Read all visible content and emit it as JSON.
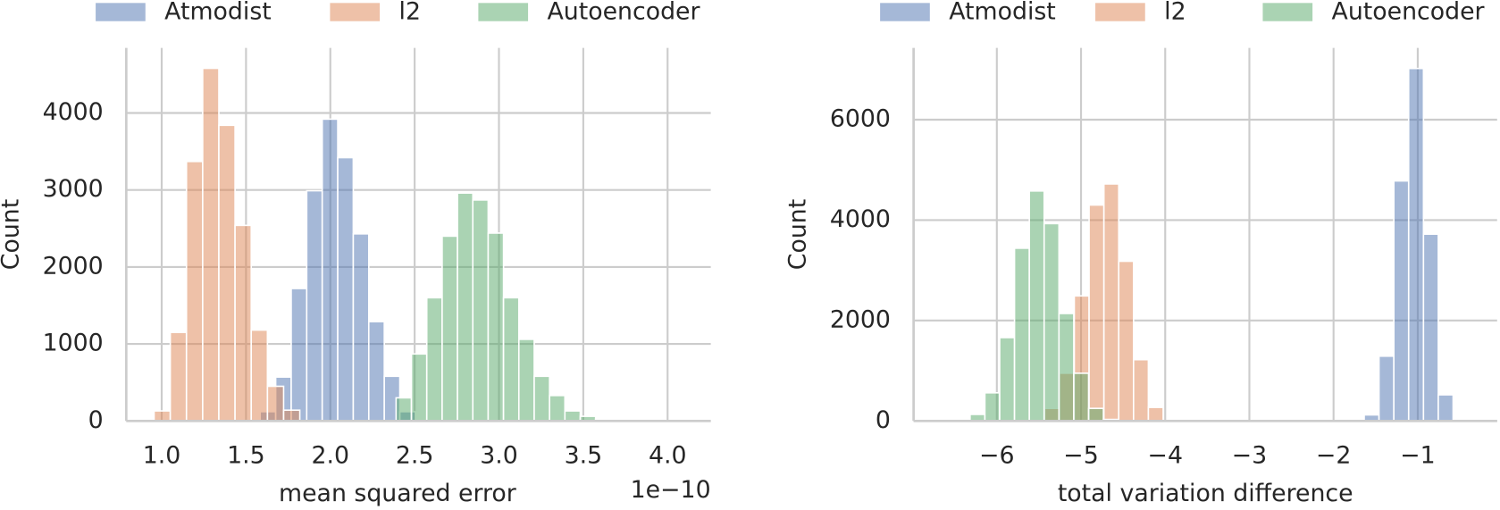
{
  "chart_data": [
    {
      "type": "histogram",
      "x_label": "mean squared error",
      "y_label": "Count",
      "x_offset_label": "1e−10",
      "xlim": [
        0.79,
        4.256
      ],
      "ylim": [
        0,
        4845
      ],
      "xticks": [
        {
          "value": 1.0,
          "label": "1.0"
        },
        1.5,
        {
          "value": 2.0,
          "label": "2.0"
        },
        2.5,
        {
          "value": 3.0,
          "label": "3.0"
        },
        3.5,
        {
          "value": 4.0,
          "label": "4.0"
        }
      ],
      "yticks": [
        0,
        1000,
        2000,
        3000,
        4000
      ],
      "grid": true,
      "legend": "top",
      "opacity": 0.5,
      "series": [
        {
          "name": "Atmodist",
          "color": "#4c72b0",
          "bins": [
            1.584,
            1.676,
            1.768,
            1.86,
            1.952,
            2.044,
            2.136,
            2.228,
            2.32,
            2.412,
            2.504
          ],
          "values": [
            120,
            570,
            1720,
            2990,
            3920,
            3420,
            2430,
            1290,
            580,
            120
          ]
        },
        {
          "name": "l2",
          "color": "#dd8452",
          "bins": [
            0.955,
            1.051,
            1.147,
            1.243,
            1.339,
            1.435,
            1.531,
            1.627,
            1.723,
            1.819
          ],
          "values": [
            130,
            1150,
            3370,
            4580,
            3840,
            2540,
            1180,
            450,
            140
          ]
        },
        {
          "name": "Autoencoder",
          "color": "#55a868",
          "bins": [
            2.39,
            2.481,
            2.572,
            2.663,
            2.754,
            2.845,
            2.936,
            3.027,
            3.118,
            3.209,
            3.3,
            3.391,
            3.482,
            3.573,
            3.664,
            3.755,
            3.846,
            3.937,
            4.028
          ],
          "values": [
            300,
            870,
            1600,
            2400,
            2960,
            2870,
            2440,
            1600,
            1060,
            580,
            330,
            130,
            60,
            20,
            10,
            5,
            5,
            3
          ]
        }
      ]
    },
    {
      "type": "histogram",
      "x_label": "total variation difference",
      "y_label": "Count",
      "xlim": [
        -6.989,
        -0.057
      ],
      "ylim": [
        0,
        7429
      ],
      "xticks": [
        {
          "value": -6,
          "label": "−6"
        },
        {
          "value": -5,
          "label": "−5"
        },
        {
          "value": -4,
          "label": "−4"
        },
        {
          "value": -3,
          "label": "−3"
        },
        {
          "value": -2,
          "label": "−2"
        },
        {
          "value": -1,
          "label": "−1"
        }
      ],
      "yticks": [
        0,
        2000,
        4000,
        6000
      ],
      "grid": true,
      "legend": "top",
      "opacity": 0.5,
      "series": [
        {
          "name": "Atmodist",
          "color": "#4c72b0",
          "bins": [
            -1.636,
            -1.46,
            -1.284,
            -1.108,
            -0.932,
            -0.756,
            -0.58
          ],
          "values": [
            120,
            1290,
            4780,
            7020,
            3720,
            520
          ]
        },
        {
          "name": "l2",
          "color": "#dd8452",
          "bins": [
            -5.432,
            -5.256,
            -5.08,
            -4.904,
            -4.728,
            -4.552,
            -4.376,
            -4.2,
            -4.024
          ],
          "values": [
            250,
            950,
            2490,
            4300,
            4720,
            3180,
            1220,
            270
          ]
        },
        {
          "name": "Autoencoder",
          "color": "#55a868",
          "bins": [
            -6.318,
            -6.142,
            -5.966,
            -5.79,
            -5.614,
            -5.438,
            -5.262,
            -5.086,
            -4.91,
            -4.734,
            -4.558
          ],
          "values": [
            130,
            560,
            1660,
            3440,
            4580,
            3930,
            2140,
            950,
            250,
            30
          ]
        }
      ]
    }
  ]
}
